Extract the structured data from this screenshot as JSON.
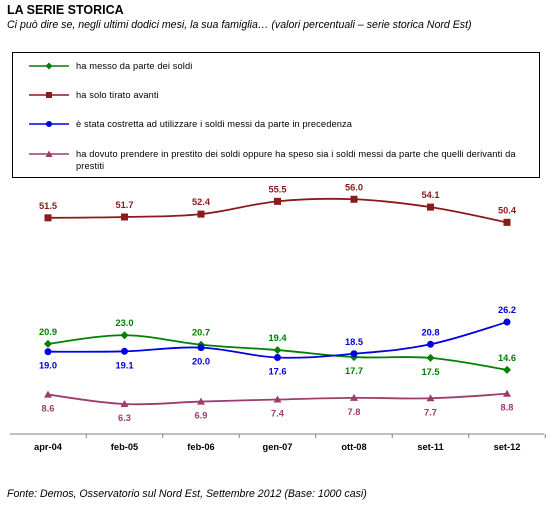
{
  "header": {
    "title": "LA SERIE STORICA",
    "subtitle": "Ci può dire se, negli ultimi dodici mesi, la sua famiglia… (valori percentuali – serie storica Nord Est)"
  },
  "footer": {
    "source": "Fonte: Demos, Osservatorio sul Nord Est, Settembre 2012 (Base: 1000 casi)"
  },
  "chart_data": {
    "type": "line",
    "title": "",
    "xlabel": "",
    "ylabel": "",
    "grid": false,
    "legend_position": "top",
    "categories": [
      "apr-04",
      "feb-05",
      "feb-06",
      "gen-07",
      "ott-08",
      "set-11",
      "set-12"
    ],
    "ylim": [
      0,
      60
    ],
    "series": [
      {
        "name": "ha messo da parte dei soldi",
        "color": "#008000",
        "marker": "diamond",
        "values": [
          20.9,
          23.0,
          20.7,
          19.4,
          17.7,
          17.5,
          14.6
        ],
        "labels": [
          "20.9",
          "23.0",
          "20.7",
          "19.4",
          "17.7",
          "17.5",
          "14.6"
        ]
      },
      {
        "name": "ha solo tirato avanti",
        "color": "#8B1A1A",
        "marker": "square",
        "values": [
          51.5,
          51.7,
          52.4,
          55.5,
          56.0,
          54.1,
          50.4
        ],
        "labels": [
          "51.5",
          "51.7",
          "52.4",
          "55.5",
          "56.0",
          "54.1",
          "50.4"
        ]
      },
      {
        "name": "è stata costretta ad utilizzare i soldi messi da parte in precedenza",
        "color": "#0000E0",
        "marker": "circle",
        "values": [
          19.0,
          19.1,
          20.0,
          17.6,
          18.5,
          20.8,
          26.2
        ],
        "labels": [
          "19.0",
          "19.1",
          "20.0",
          "17.6",
          "18.5",
          "20.8",
          "26.2"
        ]
      },
      {
        "name": "ha dovuto prendere in prestito dei soldi oppure ha speso sia i soldi messi da parte che quelli derivanti da prestiti",
        "color": "#9B3D6E",
        "marker": "triangle",
        "values": [
          8.6,
          6.3,
          6.9,
          7.4,
          7.8,
          7.7,
          8.8
        ],
        "labels": [
          "8.6",
          "6.3",
          "6.9",
          "7.4",
          "7.8",
          "7.7",
          "8.8"
        ]
      }
    ]
  }
}
